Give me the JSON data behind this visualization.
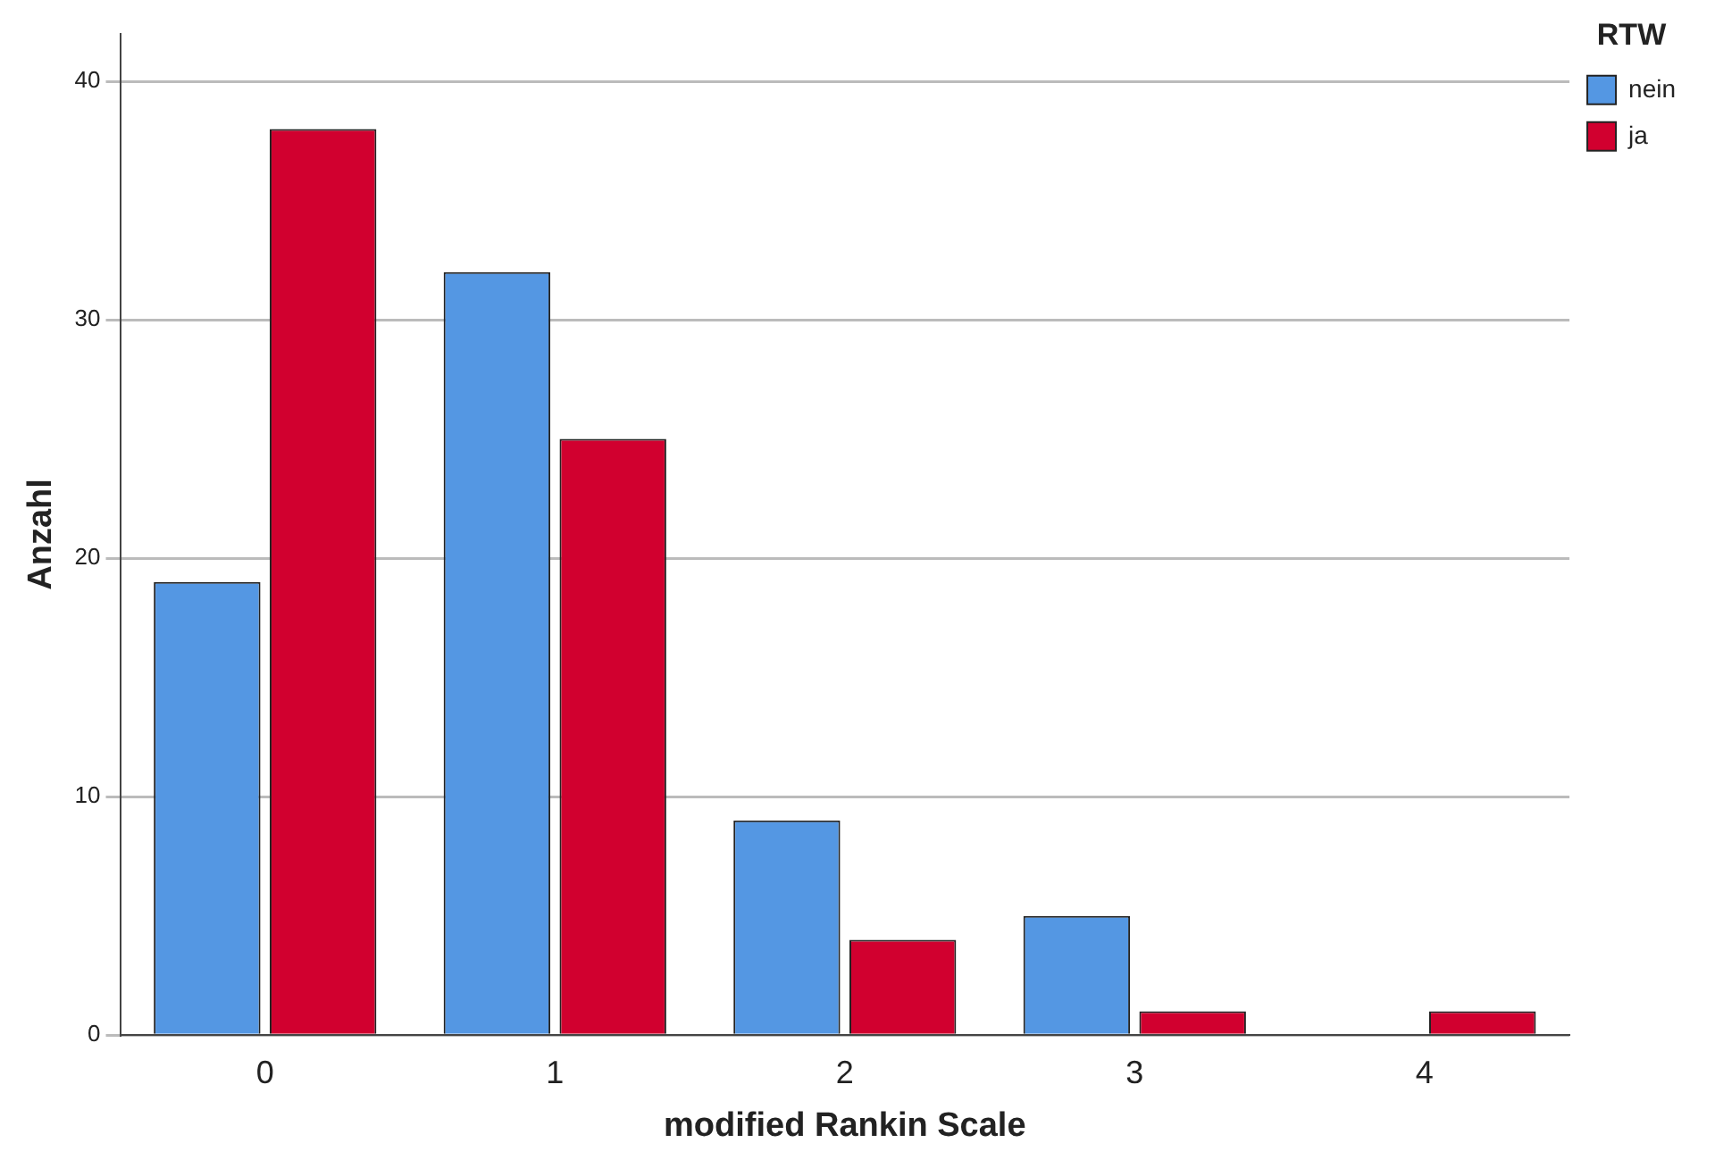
{
  "chart_data": {
    "type": "bar",
    "xlabel": "modified Rankin Scale",
    "ylabel": "Anzahl",
    "legend_title": "RTW",
    "categories": [
      "0",
      "1",
      "2",
      "3",
      "4"
    ],
    "series": [
      {
        "name": "nein",
        "color": "#5497e3",
        "values": [
          19,
          32,
          9,
          5,
          0
        ]
      },
      {
        "name": "ja",
        "color": "#d1002f",
        "values": [
          38,
          25,
          4,
          1,
          1
        ]
      }
    ],
    "ylim": [
      0,
      42
    ],
    "yticks": [
      0,
      10,
      20,
      30,
      40
    ],
    "grid": "y",
    "legend": "top right"
  }
}
